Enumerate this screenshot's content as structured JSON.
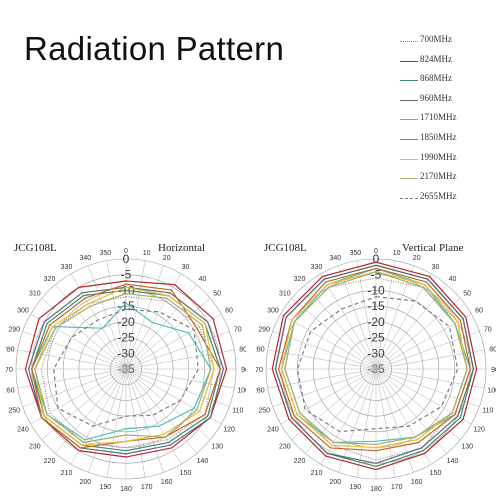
{
  "page": {
    "title": "Radiation Pattern"
  },
  "legend": [
    {
      "label": "700MHz",
      "color": "#8a8a8a",
      "dash": "1,1.5"
    },
    {
      "label": "824MHz",
      "color": "#b3262a",
      "dash": ""
    },
    {
      "label": "868MHz",
      "color": "#3e8a6c",
      "dash": ""
    },
    {
      "label": "960MHz",
      "color": "#5c6a78",
      "dash": ""
    },
    {
      "label": "1710MHz",
      "color": "#4ec1bd",
      "dash": ""
    },
    {
      "label": "1850MHz",
      "color": "#c8641e",
      "dash": ""
    },
    {
      "label": "1990MHz",
      "color": "#e6c02e",
      "dash": ""
    },
    {
      "label": "2170MHz",
      "color": "#a8aa72",
      "dash": ""
    },
    {
      "label": "2655MHz",
      "color": "#7d7d7d",
      "dash": "4,3"
    }
  ],
  "chart_data": [
    {
      "type": "polar-line",
      "model": "JCG108L",
      "label": "Horizontal",
      "r_ticks": [
        "0",
        "-5",
        "-10",
        "-15",
        "-20",
        "-25",
        "-30",
        "-35"
      ],
      "r_range": [
        -35,
        0
      ],
      "angle_ticks": [
        "0",
        "10",
        "20",
        "30",
        "40",
        "50",
        "60",
        "70",
        "80",
        "90",
        "100",
        "110",
        "120",
        "130",
        "140",
        "150",
        "160",
        "170",
        "180",
        "190",
        "200",
        "210",
        "220",
        "230",
        "240",
        "250",
        "260",
        "270",
        "280",
        "290",
        "300",
        "310",
        "320",
        "330",
        "340",
        "350"
      ],
      "grid": true,
      "series": [
        {
          "name": "700MHz",
          "theta": [
            0,
            30,
            60,
            90,
            120,
            150,
            180,
            210,
            240,
            270,
            300,
            330
          ],
          "r": [
            -12,
            -10,
            -8,
            -7,
            -6,
            -9,
            -10,
            -8,
            -7,
            -8,
            -9,
            -11
          ]
        },
        {
          "name": "824MHz",
          "theta": [
            0,
            30,
            60,
            90,
            120,
            150,
            180,
            210,
            240,
            270,
            300,
            330
          ],
          "r": [
            -7,
            -4,
            -3,
            -3,
            -4,
            -6,
            -7,
            -5,
            -4,
            -3,
            -3,
            -5
          ]
        },
        {
          "name": "868MHz",
          "theta": [
            0,
            30,
            60,
            90,
            120,
            150,
            180,
            210,
            240,
            270,
            300,
            330
          ],
          "r": [
            -10,
            -8,
            -6,
            -5,
            -5,
            -8,
            -9,
            -7,
            -5,
            -5,
            -6,
            -8
          ]
        },
        {
          "name": "960MHz",
          "theta": [
            0,
            30,
            60,
            90,
            120,
            150,
            180,
            210,
            240,
            270,
            300,
            330
          ],
          "r": [
            -9,
            -7,
            -5,
            -4,
            -4,
            -7,
            -8,
            -6,
            -4,
            -4,
            -5,
            -7
          ]
        },
        {
          "name": "1710MHz",
          "theta": [
            0,
            30,
            60,
            90,
            120,
            150,
            180,
            210,
            240,
            270,
            300,
            330
          ],
          "r": [
            -14,
            -18,
            -12,
            -8,
            -10,
            -14,
            -16,
            -9,
            -6,
            -5,
            -8,
            -20
          ]
        },
        {
          "name": "1850MHz",
          "theta": [
            0,
            30,
            60,
            90,
            120,
            150,
            180,
            210,
            240,
            270,
            300,
            330
          ],
          "r": [
            -8,
            -6,
            -9,
            -5,
            -6,
            -10,
            -12,
            -6,
            -4,
            -5,
            -7,
            -9
          ]
        },
        {
          "name": "1990MHz",
          "theta": [
            0,
            30,
            60,
            90,
            120,
            150,
            180,
            210,
            240,
            270,
            300,
            330
          ],
          "r": [
            -9,
            -8,
            -6,
            -7,
            -8,
            -11,
            -12,
            -7,
            -5,
            -6,
            -8,
            -11
          ]
        },
        {
          "name": "2170MHz",
          "theta": [
            0,
            30,
            60,
            90,
            120,
            150,
            180,
            210,
            240,
            270,
            300,
            330
          ],
          "r": [
            -11,
            -9,
            -7,
            -8,
            -9,
            -10,
            -14,
            -8,
            -6,
            -6,
            -9,
            -12
          ]
        },
        {
          "name": "2655MHz",
          "theta": [
            0,
            30,
            60,
            90,
            120,
            150,
            180,
            210,
            240,
            270,
            300,
            330
          ],
          "r": [
            -16,
            -14,
            -10,
            -12,
            -15,
            -18,
            -20,
            -14,
            -10,
            -12,
            -15,
            -17
          ]
        }
      ]
    },
    {
      "type": "polar-line",
      "model": "JCG108L",
      "label": "Vertical Plane",
      "r_ticks": [
        "0",
        "-5",
        "-10",
        "-15",
        "-20",
        "-25",
        "-30",
        "-35"
      ],
      "r_range": [
        -35,
        0
      ],
      "angle_ticks": [
        "0",
        "10",
        "20",
        "30",
        "40",
        "50",
        "60",
        "70",
        "80",
        "90",
        "100",
        "110",
        "120",
        "130",
        "140",
        "150",
        "160",
        "170",
        "180",
        "190",
        "200",
        "210",
        "220",
        "230",
        "240",
        "250",
        "260",
        "270",
        "280",
        "290",
        "300",
        "310",
        "320",
        "330",
        "340",
        "350"
      ],
      "grid": true,
      "series": [
        {
          "name": "700MHz",
          "theta": [
            0,
            30,
            60,
            90,
            120,
            150,
            180,
            210,
            240,
            270,
            300,
            330
          ],
          "r": [
            -6,
            -5,
            -5,
            -6,
            -7,
            -6,
            -6,
            -7,
            -7,
            -6,
            -5,
            -5
          ]
        },
        {
          "name": "824MHz",
          "theta": [
            0,
            30,
            60,
            90,
            120,
            150,
            180,
            210,
            240,
            270,
            300,
            330
          ],
          "r": [
            -1,
            -1,
            -2,
            -3,
            -3,
            -4,
            -3,
            -3,
            -3,
            -2,
            -1,
            -1
          ]
        },
        {
          "name": "868MHz",
          "theta": [
            0,
            30,
            60,
            90,
            120,
            150,
            180,
            210,
            240,
            270,
            300,
            330
          ],
          "r": [
            -2,
            -2,
            -3,
            -4,
            -4,
            -5,
            -4,
            -4,
            -4,
            -3,
            -2,
            -2
          ]
        },
        {
          "name": "960MHz",
          "theta": [
            0,
            30,
            60,
            90,
            120,
            150,
            180,
            210,
            240,
            270,
            300,
            330
          ],
          "r": [
            -2,
            -2,
            -3,
            -4,
            -5,
            -6,
            -5,
            -4,
            -4,
            -3,
            -2,
            -2
          ]
        },
        {
          "name": "1710MHz",
          "theta": [
            0,
            30,
            60,
            90,
            120,
            150,
            180,
            210,
            240,
            270,
            300,
            330
          ],
          "r": [
            -3,
            -4,
            -6,
            -5,
            -6,
            -10,
            -12,
            -8,
            -6,
            -5,
            -5,
            -4
          ]
        },
        {
          "name": "1850MHz",
          "theta": [
            0,
            30,
            60,
            90,
            120,
            150,
            180,
            210,
            240,
            270,
            300,
            330
          ],
          "r": [
            -3,
            -3,
            -4,
            -5,
            -6,
            -8,
            -9,
            -6,
            -5,
            -4,
            -4,
            -3
          ]
        },
        {
          "name": "1990MHz",
          "theta": [
            0,
            30,
            60,
            90,
            120,
            150,
            180,
            210,
            240,
            270,
            300,
            330
          ],
          "r": [
            -4,
            -4,
            -5,
            -6,
            -7,
            -9,
            -10,
            -7,
            -6,
            -5,
            -4,
            -4
          ]
        },
        {
          "name": "2170MHz",
          "theta": [
            0,
            30,
            60,
            90,
            120,
            150,
            180,
            210,
            240,
            270,
            300,
            330
          ],
          "r": [
            -4,
            -5,
            -6,
            -6,
            -7,
            -10,
            -11,
            -8,
            -7,
            -6,
            -5,
            -5
          ]
        },
        {
          "name": "2655MHz",
          "theta": [
            0,
            30,
            60,
            90,
            120,
            150,
            180,
            210,
            240,
            270,
            300,
            330
          ],
          "r": [
            -12,
            -10,
            -8,
            -9,
            -11,
            -14,
            -16,
            -12,
            -9,
            -10,
            -11,
            -13
          ]
        }
      ]
    }
  ]
}
